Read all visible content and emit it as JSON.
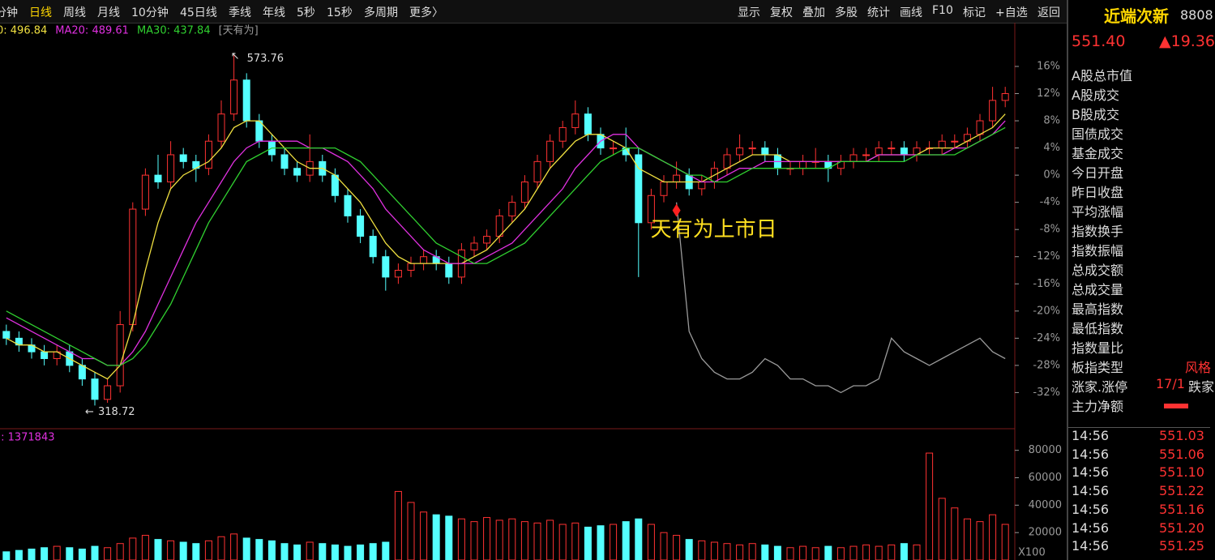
{
  "toolbar": {
    "left": [
      "分钟",
      "日线",
      "周线",
      "月线",
      "10分钟",
      "45日线",
      "季线",
      "年线",
      "5秒",
      "15秒",
      "多周期",
      "更多〉"
    ],
    "active": "日线",
    "right": [
      "显示",
      "复权",
      "叠加",
      "多股",
      "统计",
      "画线",
      "F10",
      "标记",
      "+自选",
      "返回"
    ]
  },
  "chart_data": [
    {
      "type": "candlestick",
      "up_color": "#ff3232",
      "down_color": "#54ffff",
      "open": [
        -23,
        -24,
        -25,
        -26,
        -27,
        -26,
        -28,
        -30,
        -33,
        -31,
        -22,
        -5,
        0,
        -1,
        3,
        2,
        1,
        5,
        9,
        14,
        8,
        5,
        3,
        1,
        0,
        2,
        0,
        -3,
        -6,
        -9,
        -12,
        -15,
        -14,
        -13,
        -12,
        -13,
        -15,
        -11,
        -10,
        -9,
        -6,
        -4,
        -1,
        2,
        5,
        7,
        9,
        6,
        4,
        4,
        3,
        -7,
        -3,
        -1,
        0,
        -2,
        -1,
        1,
        3,
        4,
        4,
        3,
        1,
        1,
        2,
        2,
        1,
        2,
        3,
        3,
        4,
        4,
        3,
        4,
        4,
        5,
        5,
        6,
        8,
        11
      ],
      "high": [
        -22,
        -23,
        -24,
        -25,
        -25,
        -25,
        -27,
        -29,
        -30,
        -20,
        -4,
        1,
        3,
        5,
        4,
        3,
        6,
        11,
        17.7,
        15,
        9,
        6,
        4,
        2,
        6,
        3,
        1,
        -2,
        -5,
        -8,
        -11,
        -13,
        -12,
        -11,
        -11,
        -12,
        -10,
        -9,
        -8,
        -5,
        -3,
        0,
        3,
        6,
        8,
        11,
        10,
        7,
        5,
        7,
        4,
        -2,
        0,
        2,
        1,
        0,
        2,
        4,
        6,
        5,
        5,
        4,
        2,
        3,
        4,
        3,
        3,
        4,
        4,
        5,
        5,
        5,
        5,
        5,
        6,
        6,
        7,
        9,
        13,
        13
      ],
      "low": [
        -25,
        -26,
        -27,
        -28,
        -28,
        -29,
        -31,
        -33.9,
        -33.5,
        -32,
        -23,
        -6,
        -2,
        -2,
        1,
        -1,
        0,
        4,
        8,
        7,
        4,
        2,
        0,
        -1,
        -1,
        -1,
        -4,
        -7,
        -10,
        -13,
        -17,
        -16,
        -15,
        -14,
        -14,
        -16,
        -16,
        -12,
        -11,
        -10,
        -7,
        -5,
        -2,
        1,
        4,
        6,
        5,
        3,
        3,
        2,
        -15,
        -8,
        -4,
        -2,
        -3,
        -3,
        -2,
        0,
        2,
        3,
        2,
        0,
        0,
        0,
        1,
        -1,
        0,
        1,
        2,
        2,
        3,
        2,
        2,
        3,
        3,
        4,
        4,
        5,
        7,
        10
      ],
      "close": [
        -24,
        -25,
        -26,
        -27,
        -26,
        -28,
        -30,
        -33,
        -31,
        -22,
        -5,
        0,
        -1,
        3,
        2,
        1,
        5,
        9,
        14,
        8,
        5,
        3,
        1,
        0,
        2,
        0,
        -3,
        -6,
        -9,
        -12,
        -15,
        -14,
        -13,
        -12,
        -13,
        -15,
        -11,
        -10,
        -9,
        -6,
        -4,
        -1,
        2,
        5,
        7,
        9,
        6,
        4,
        4,
        3,
        -7,
        -3,
        -1,
        0,
        -2,
        -1,
        1,
        3,
        4,
        4,
        3,
        1,
        1,
        2,
        2,
        1,
        2,
        3,
        3,
        4,
        4,
        3,
        4,
        4,
        5,
        5,
        6,
        8,
        11,
        12
      ],
      "series": [
        {
          "name": "0: 496.84",
          "color": "#f0e040",
          "values": [
            -24,
            -25,
            -25,
            -26,
            -26,
            -27,
            -28,
            -29,
            -30,
            -28,
            -22,
            -14,
            -7,
            -2,
            0,
            1,
            2,
            4,
            7,
            8,
            8,
            6,
            4,
            2,
            1,
            1,
            0,
            -2,
            -4,
            -7,
            -10,
            -12,
            -13,
            -13,
            -13,
            -13,
            -13,
            -12,
            -11,
            -9,
            -7,
            -5,
            -2,
            1,
            3,
            5,
            6,
            6,
            5,
            4,
            1,
            0,
            -1,
            -1,
            -1,
            -1,
            0,
            1,
            2,
            3,
            3,
            3,
            2,
            2,
            2,
            2,
            2,
            2,
            2,
            3,
            3,
            3,
            3,
            4,
            4,
            4,
            5,
            6,
            7,
            9
          ]
        },
        {
          "name": "MA20: 489.61",
          "color": "#e030e0",
          "values": [
            -21,
            -22,
            -23,
            -24,
            -25,
            -26,
            -27,
            -27,
            -28,
            -28,
            -26,
            -23,
            -19,
            -15,
            -11,
            -7,
            -4,
            -1,
            2,
            4,
            5,
            5,
            5,
            5,
            4,
            4,
            3,
            2,
            0,
            -2,
            -5,
            -7,
            -9,
            -11,
            -12,
            -13,
            -13,
            -13,
            -12,
            -11,
            -10,
            -8,
            -6,
            -4,
            -2,
            1,
            3,
            5,
            6,
            6,
            4,
            3,
            2,
            1,
            0,
            -1,
            -1,
            0,
            1,
            1,
            2,
            2,
            2,
            2,
            2,
            2,
            2,
            2,
            2,
            3,
            3,
            3,
            3,
            3,
            3,
            4,
            4,
            5,
            6,
            8
          ]
        },
        {
          "name": "MA30: 437.84",
          "color": "#30d030",
          "values": [
            -20,
            -21,
            -22,
            -23,
            -24,
            -25,
            -26,
            -27,
            -28,
            -28,
            -27,
            -25,
            -22,
            -19,
            -15,
            -11,
            -7,
            -4,
            -1,
            2,
            3,
            4,
            4,
            4,
            4,
            4,
            4,
            3,
            2,
            0,
            -2,
            -4,
            -6,
            -8,
            -10,
            -11,
            -12,
            -13,
            -13,
            -12,
            -11,
            -10,
            -8,
            -6,
            -4,
            -2,
            0,
            2,
            3,
            4,
            4,
            3,
            2,
            1,
            0,
            0,
            -1,
            -1,
            0,
            1,
            1,
            1,
            1,
            1,
            1,
            1,
            2,
            2,
            2,
            2,
            2,
            2,
            3,
            3,
            3,
            3,
            4,
            5,
            6,
            7
          ]
        },
        {
          "name": "[天有为]",
          "color": "#9a9a9a",
          "values": [
            null,
            null,
            null,
            null,
            null,
            null,
            null,
            null,
            null,
            null,
            null,
            null,
            null,
            null,
            null,
            null,
            null,
            null,
            null,
            null,
            null,
            null,
            null,
            null,
            null,
            null,
            null,
            null,
            null,
            null,
            null,
            null,
            null,
            null,
            null,
            null,
            null,
            null,
            null,
            null,
            null,
            null,
            null,
            null,
            null,
            null,
            null,
            null,
            null,
            null,
            null,
            null,
            null,
            -4,
            -23,
            -27,
            -29,
            -30,
            -30,
            -29,
            -27,
            -28,
            -30,
            -30,
            -31,
            -31,
            -32,
            -31,
            -31,
            -30,
            -24,
            -26,
            -27,
            -28,
            -27,
            -26,
            -25,
            -24,
            -26,
            -27
          ]
        }
      ],
      "ylim": [
        -37.2,
        22.2
      ],
      "yticks": [
        {
          "value": 16,
          "label": "16%"
        },
        {
          "value": 12,
          "label": "12%"
        },
        {
          "value": 8,
          "label": "8%"
        },
        {
          "value": 4,
          "label": "4%"
        },
        {
          "value": 0,
          "label": "0%"
        },
        {
          "value": -4,
          "label": "-4%"
        },
        {
          "value": -8,
          "label": "-8%"
        },
        {
          "value": -12,
          "label": "-12%"
        },
        {
          "value": -16,
          "label": "-16%"
        },
        {
          "value": -20,
          "label": "-20%"
        },
        {
          "value": -24,
          "label": "-24%"
        },
        {
          "value": -28,
          "label": "-28%"
        },
        {
          "value": -32,
          "label": "-32%"
        }
      ],
      "max_label": 573.76,
      "min_label": 318.72,
      "event_label": "天有为上市日"
    },
    {
      "type": "bar",
      "label": "): 1371843",
      "values": [
        6000,
        7000,
        8000,
        9000,
        10000,
        9000,
        8000,
        10000,
        9000,
        12000,
        16000,
        18000,
        15000,
        14000,
        13000,
        12000,
        14000,
        17000,
        19000,
        16000,
        15000,
        14000,
        12000,
        11000,
        13000,
        12000,
        11000,
        10000,
        11000,
        12000,
        13000,
        50000,
        42000,
        35000,
        33000,
        32000,
        30000,
        28000,
        31000,
        29000,
        30000,
        28000,
        27000,
        29000,
        26000,
        27000,
        24000,
        25000,
        26000,
        28000,
        30000,
        26000,
        20000,
        18000,
        15000,
        14000,
        13000,
        12000,
        11000,
        12000,
        11000,
        10000,
        9000,
        10000,
        9000,
        10000,
        9000,
        10000,
        11000,
        10000,
        11000,
        12000,
        11000,
        78000,
        45000,
        38000,
        30000,
        28000,
        33000,
        26000
      ],
      "ylim": [
        0,
        94000
      ],
      "yticks": [
        20000,
        40000,
        60000,
        80000
      ],
      "unit_label": "X100"
    }
  ],
  "panel": {
    "name": "近端次新",
    "code": "8808",
    "price": "551.40",
    "change": "▲19.36",
    "rows": [
      [
        "A股总市值",
        ""
      ],
      [
        "A股成交",
        ""
      ],
      [
        "B股成交",
        ""
      ],
      [
        "国债成交",
        ""
      ],
      [
        "基金成交",
        ""
      ],
      [
        "今日开盘",
        ""
      ],
      [
        "昨日收盘",
        ""
      ],
      [
        "平均涨幅",
        ""
      ],
      [
        "指数换手",
        ""
      ],
      [
        "指数振幅",
        ""
      ],
      [
        "总成交额",
        ""
      ],
      [
        "总成交量",
        ""
      ],
      [
        "最高指数",
        ""
      ],
      [
        "最低指数",
        ""
      ],
      [
        "指数量比",
        ""
      ],
      [
        "板指类型",
        "风格"
      ],
      [
        "涨家.涨停",
        "17/1"
      ],
      [
        "主力净额",
        ""
      ]
    ],
    "updown_extra": "跌家",
    "ticks": [
      [
        "14:56",
        "551.03"
      ],
      [
        "14:56",
        "551.06"
      ],
      [
        "14:56",
        "551.10"
      ],
      [
        "14:56",
        "551.22"
      ],
      [
        "14:56",
        "551.16"
      ],
      [
        "14:56",
        "551.20"
      ],
      [
        "14:56",
        "551.25"
      ]
    ]
  }
}
